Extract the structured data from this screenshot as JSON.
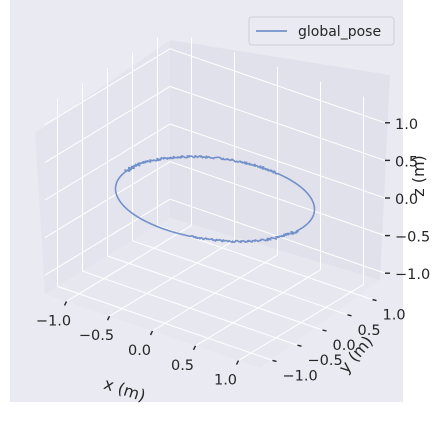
{
  "chart_data": {
    "type": "line3d",
    "series": [
      {
        "name": "global_pose",
        "color": "#7290c9",
        "shape": "circle",
        "radius": 1.0,
        "z": 0.0,
        "noise": "small jitter along the top-left and bottom-right of the loop"
      }
    ],
    "xlabel": "x (m)",
    "ylabel": "y (m)",
    "zlabel": "z (m)",
    "xlim": [
      -1.25,
      1.25
    ],
    "ylim": [
      -1.25,
      1.25
    ],
    "zlim": [
      -1.25,
      1.25
    ],
    "xticks": [
      "−1.0",
      "−0.5",
      "0.0",
      "0.5",
      "1.0"
    ],
    "yticks": [
      "−1.0",
      "−0.5",
      "0.0",
      "0.5",
      "1.0"
    ],
    "zticks": [
      "−1.0",
      "−0.5",
      "0.0",
      "0.5",
      "1.0"
    ],
    "grid": true,
    "legend_position": "top-right",
    "pane_color": "#eaeaf2",
    "background_color": "#eaeaf2"
  }
}
